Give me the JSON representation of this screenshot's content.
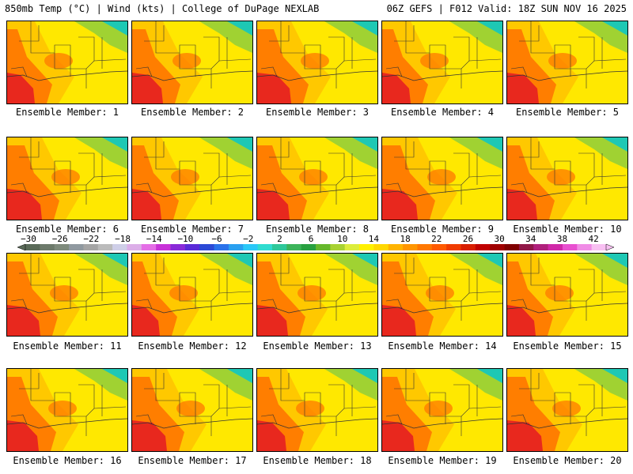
{
  "header": {
    "left": "850mb Temp (°C) | Wind (kts) | College of DuPage NEXLAB",
    "right": "06Z GEFS | F012 Valid: 18Z SUN NOV 16 2025"
  },
  "caption_prefix": "Ensemble Member:",
  "members": [
    1,
    2,
    3,
    4,
    5,
    6,
    7,
    8,
    9,
    10,
    11,
    12,
    13,
    14,
    15,
    16,
    17,
    18,
    19,
    20
  ],
  "colorbar": {
    "labels": [
      "-30",
      "-26",
      "-22",
      "-18",
      "-14",
      "-10",
      "-6",
      "-2",
      "2",
      "6",
      "10",
      "14",
      "18",
      "22",
      "26",
      "30",
      "34",
      "38",
      "42"
    ],
    "colors": [
      "#5a6a58",
      "#6d7a6b",
      "#7e8a7c",
      "#9099a0",
      "#a5a5a5",
      "#bbbbbb",
      "#cfcfe8",
      "#dcaee8",
      "#e46ee6",
      "#c832d8",
      "#8a2ad8",
      "#5a2ad8",
      "#2c4ad6",
      "#2a72ea",
      "#2aa0f0",
      "#2ac8f8",
      "#30dcd0",
      "#2ec89a",
      "#3cb45a",
      "#28a040",
      "#66b82c",
      "#a8d232",
      "#dced3c",
      "#fff000",
      "#ffd800",
      "#ffb400",
      "#ff9600",
      "#ff7800",
      "#ff5a00",
      "#f03c00",
      "#d81e00",
      "#c00000",
      "#a00000",
      "#800000",
      "#901848",
      "#b0207c",
      "#d028a8",
      "#e850d0",
      "#f08ce6",
      "#f8c0f2"
    ]
  },
  "colors": {
    "hot": "#e8281e",
    "warm": "#ff7e00",
    "mild": "#ffc800",
    "cool": "#ffe800",
    "cold": "#a0d232",
    "coldest": "#1ec8b4"
  }
}
